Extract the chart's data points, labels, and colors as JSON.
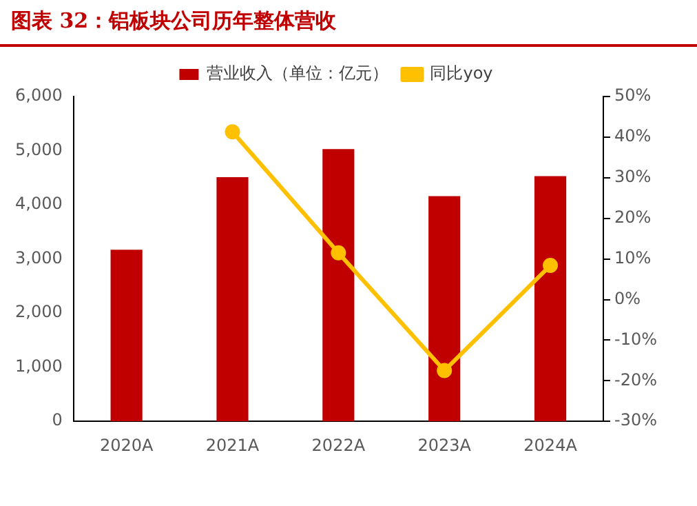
{
  "chart_data": {
    "type": "bar",
    "title": "图表 32：铝板块公司历年整体营收",
    "categories": [
      "2020A",
      "2021A",
      "2022A",
      "2023A",
      "2024A"
    ],
    "series": [
      {
        "name": "营业收入（单位：亿元）",
        "color": "#c00000",
        "values": [
          3170,
          4510,
          5030,
          4160,
          4530
        ]
      },
      {
        "name": "同比yoy",
        "type": "line",
        "axis": "y2",
        "color": "#ffc000",
        "values": [
          null,
          41.3,
          11.5,
          -17.5,
          8.4
        ]
      }
    ],
    "ylim": [
      0,
      6000
    ],
    "yticks": [
      {
        "value": 0,
        "label": "0"
      },
      {
        "value": 1000,
        "label": "1,000"
      },
      {
        "value": 2000,
        "label": "2,000"
      },
      {
        "value": 3000,
        "label": "3,000"
      },
      {
        "value": 4000,
        "label": "4,000"
      },
      {
        "value": 5000,
        "label": "5,000"
      },
      {
        "value": 6000,
        "label": "6,000"
      }
    ],
    "y2lim": [
      -30,
      50
    ],
    "y2ticks": [
      {
        "value": -30,
        "label": "-30%"
      },
      {
        "value": -20,
        "label": "-20%"
      },
      {
        "value": -10,
        "label": "-10%"
      },
      {
        "value": 0,
        "label": "0%"
      },
      {
        "value": 10,
        "label": "10%"
      },
      {
        "value": 20,
        "label": "20%"
      },
      {
        "value": 30,
        "label": "30%"
      },
      {
        "value": 40,
        "label": "40%"
      },
      {
        "value": 50,
        "label": "50%"
      }
    ],
    "grid": false,
    "legend": "top",
    "marker": "circle",
    "line_style": "solid"
  }
}
